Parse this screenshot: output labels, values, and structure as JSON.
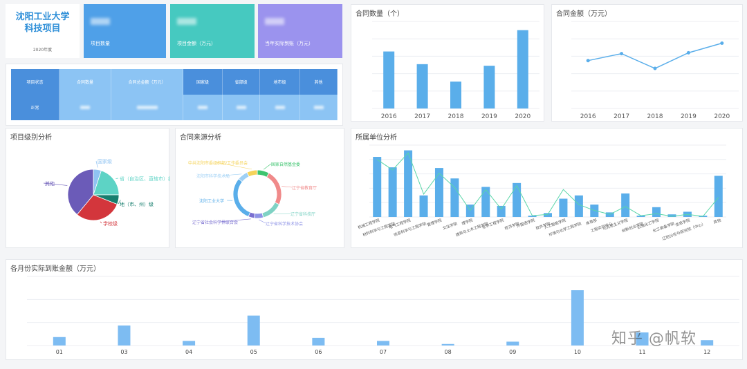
{
  "title": {
    "line1": "沈阳工业大学",
    "line2": "科技项目",
    "year": "2020年度"
  },
  "kpis": [
    {
      "label": "项目数量",
      "color": "#4fa0e8"
    },
    {
      "label": "项目金额（万元）",
      "color": "#46c9c0"
    },
    {
      "label": "当年实际到账（万元）",
      "color": "#9b93ee"
    }
  ],
  "table": {
    "headers": [
      "项目状态",
      "合同数量",
      "合同总金额（万元）",
      "国家级",
      "省部级",
      "地市级",
      "其他"
    ],
    "row_label": "正常"
  },
  "contract_count": {
    "title": "合同数量（个）",
    "chart_data": {
      "type": "bar",
      "categories": [
        "2016",
        "2017",
        "2018",
        "2019",
        "2020"
      ],
      "values": [
        72,
        56,
        34,
        54,
        99
      ],
      "ylim": [
        0,
        110
      ],
      "color": "#5aaeea"
    }
  },
  "contract_amount": {
    "title": "合同金额（万元）",
    "chart_data": {
      "type": "line",
      "categories": [
        "2016",
        "2017",
        "2018",
        "2019",
        "2020"
      ],
      "values": [
        55,
        63,
        46,
        64,
        75
      ],
      "ylim": [
        0,
        100
      ],
      "color": "#5aaeea"
    }
  },
  "level_analysis": {
    "title": "项目级别分析",
    "chart_data": {
      "type": "pie",
      "slices": [
        {
          "label": "国家级",
          "value": 5,
          "color": "#8fc3f2"
        },
        {
          "label": "省（自治区、直辖市）级",
          "value": 20,
          "color": "#5dd3c5"
        },
        {
          "label": "地（市、州）级",
          "value": 6,
          "color": "#177e6e"
        },
        {
          "label": "学校级",
          "value": 30,
          "color": "#d3363c"
        },
        {
          "label": "其他",
          "value": 39,
          "color": "#6b5bb8"
        }
      ]
    }
  },
  "source_analysis": {
    "title": "合同来源分析",
    "chart_data": {
      "type": "pie",
      "slices": [
        {
          "label": "国家自然基金委",
          "value": 8,
          "color": "#3ec46f"
        },
        {
          "label": "辽宁省教育厅",
          "value": 24,
          "color": "#f08a8a"
        },
        {
          "label": "辽宁省科技厅",
          "value": 14,
          "color": "#7fd2c4"
        },
        {
          "label": "辽宁省科学技术协会",
          "value": 6,
          "color": "#8e93e6"
        },
        {
          "label": "辽宁省社会科学界联合会",
          "value": 4,
          "color": "#7a6fd0"
        },
        {
          "label": "沈阳工业大学",
          "value": 30,
          "color": "#5aaeea"
        },
        {
          "label": "沈阳市科学技术局",
          "value": 7,
          "color": "#9ed0f5"
        },
        {
          "label": "中共沈阳市委组织部/工作委员会",
          "value": 7,
          "color": "#f5d35a"
        }
      ]
    }
  },
  "unit_analysis": {
    "title": "所属单位分析",
    "chart_data": {
      "type": "bar",
      "categories": [
        "机械工程学院",
        "材料科学与工程学院",
        "电气工程学院",
        "信息科学与工程学院",
        "管理学院",
        "文法学院",
        "理学院",
        "建筑与土木工程学院",
        "化学工程学院",
        "经济学院",
        "外国语学院",
        "软件学院",
        "人工智能学院",
        "环境与化学工程学院",
        "体育部",
        "工程实训中心",
        "马克思主义学院",
        "创新创业学院",
        "石油化工学院",
        "化工装备学院",
        "信息学院",
        "辽阳分校与研究院（中心）",
        "其他"
      ],
      "series": [
        {
          "name": "bar",
          "values": [
            92,
            76,
            102,
            33,
            75,
            59,
            19,
            46,
            17,
            52,
            2,
            6,
            28,
            33,
            19,
            7,
            36,
            2,
            15,
            4,
            8,
            2,
            63
          ]
        },
        {
          "name": "line",
          "values": [
            88,
            72,
            98,
            35,
            67,
            45,
            10,
            42,
            12,
            48,
            2,
            4,
            42,
            19,
            10,
            4,
            16,
            2,
            5,
            1,
            4,
            1,
            30
          ]
        }
      ],
      "ylim": [
        0,
        110
      ],
      "colors": [
        "#5aaeea",
        "#5ad6a8"
      ]
    }
  },
  "monthly": {
    "title": "各月份实际到账金额（万元）",
    "chart_data": {
      "type": "bar",
      "categories": [
        "01",
        "03",
        "04",
        "05",
        "06",
        "07",
        "08",
        "09",
        "10",
        "11",
        "12"
      ],
      "values": [
        11,
        26,
        6,
        39,
        10,
        6,
        2,
        5,
        72,
        17,
        7
      ],
      "ylim": [
        0,
        90
      ],
      "color": "#7dbcf2"
    }
  },
  "watermark": "知乎 @帆软"
}
